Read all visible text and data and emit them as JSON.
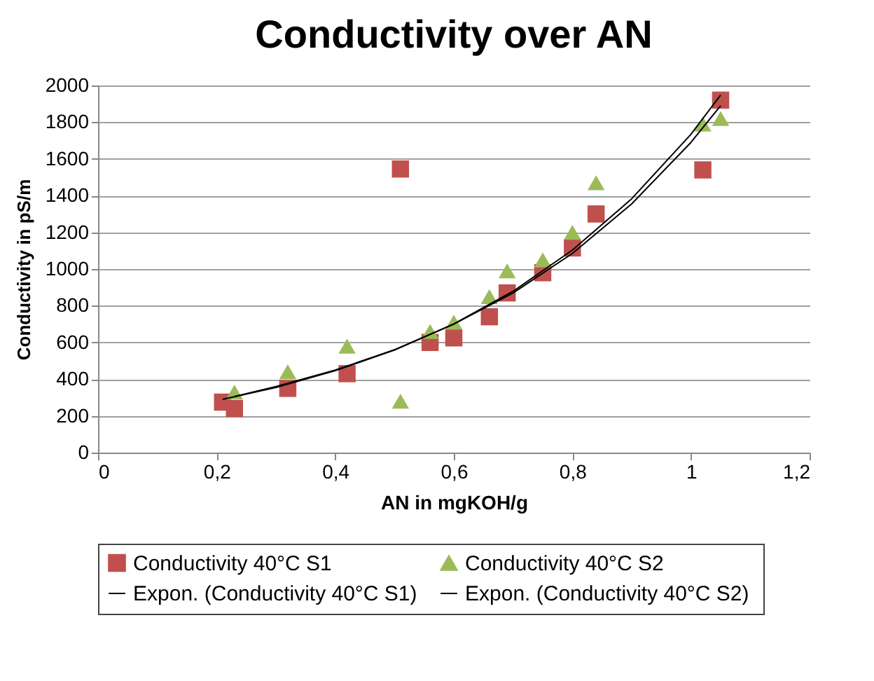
{
  "chart_data": {
    "type": "scatter",
    "title": "Conductivity over AN",
    "xlabel": "AN in mgKOH/g",
    "ylabel": "Conductivity in pS/m",
    "xlim": [
      0,
      1.2
    ],
    "xticks": [
      0,
      {
        "value": 0.2,
        "label": "0,2"
      },
      {
        "value": 0.4,
        "label": "0,4"
      },
      {
        "value": 0.6,
        "label": "0,6"
      },
      {
        "value": 0.8,
        "label": "0,8"
      },
      1,
      {
        "value": 1.2,
        "label": "1,2"
      }
    ],
    "ylim": [
      0,
      2000
    ],
    "yticks": [
      0,
      200,
      400,
      600,
      800,
      1000,
      1200,
      1400,
      1600,
      1800,
      2000
    ],
    "grid": "y",
    "legend": "bottom",
    "series": [
      {
        "name": "Conductivity  40°C S1",
        "marker": "square",
        "color": "#c0504d",
        "x": [
          0.21,
          0.23,
          0.32,
          0.42,
          0.51,
          0.56,
          0.6,
          0.66,
          0.69,
          0.75,
          0.8,
          0.84,
          1.02,
          1.05
        ],
        "values": [
          275,
          240,
          350,
          430,
          1545,
          600,
          625,
          740,
          870,
          980,
          1115,
          1300,
          1540,
          1920
        ]
      },
      {
        "name": "Conductivity  40°C S2",
        "marker": "triangle",
        "color": "#9bbb59",
        "x": [
          0.23,
          0.32,
          0.42,
          0.51,
          0.56,
          0.6,
          0.66,
          0.69,
          0.75,
          0.8,
          0.84,
          1.02,
          1.05
        ],
        "values": [
          330,
          440,
          580,
          280,
          660,
          710,
          850,
          990,
          1050,
          1200,
          1470,
          1790,
          1820
        ]
      },
      {
        "name": "Expon. (Conductivity  40°C S1)",
        "type": "line",
        "marker": "none",
        "color": "#000000",
        "x": [
          0.21,
          0.3,
          0.4,
          0.5,
          0.6,
          0.7,
          0.8,
          0.9,
          1.0,
          1.05
        ],
        "values": [
          290,
          355,
          446,
          559,
          701,
          879,
          1103,
          1383,
          1734,
          1948
        ]
      },
      {
        "name": "Expon. (Conductivity  40°C S2)",
        "type": "line",
        "marker": "none",
        "color": "#000000",
        "x": [
          0.23,
          0.3,
          0.4,
          0.5,
          0.6,
          0.7,
          0.8,
          0.9,
          1.0,
          1.05
        ],
        "values": [
          305,
          360,
          450,
          560,
          700,
          870,
          1085,
          1355,
          1690,
          1890
        ]
      }
    ]
  }
}
